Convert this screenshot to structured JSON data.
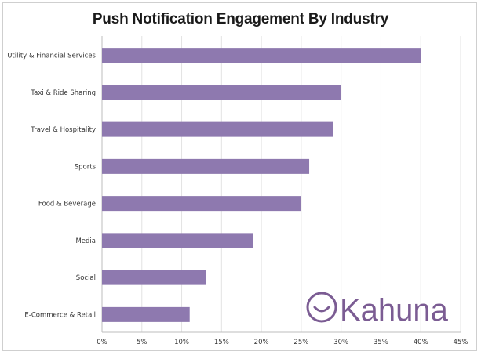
{
  "chart_data": {
    "type": "bar",
    "orientation": "horizontal",
    "title": "Push Notification Engagement By Industry",
    "categories": [
      "Utility & Financial Services",
      "Taxi & Ride Sharing",
      "Travel & Hospitality",
      "Sports",
      "Food & Beverage",
      "Media",
      "Social",
      "E-Commerce & Retail"
    ],
    "values": [
      40,
      30,
      29,
      26,
      25,
      19,
      13,
      11
    ],
    "xlim": [
      0,
      45
    ],
    "x_ticks": [
      "0%",
      "5%",
      "10%",
      "15%",
      "20%",
      "25%",
      "30%",
      "35%",
      "40%",
      "45%"
    ],
    "grid": true,
    "bar_color": "#8e79af"
  },
  "logo": {
    "text": "Kahuna",
    "color": "#7b5c93"
  }
}
